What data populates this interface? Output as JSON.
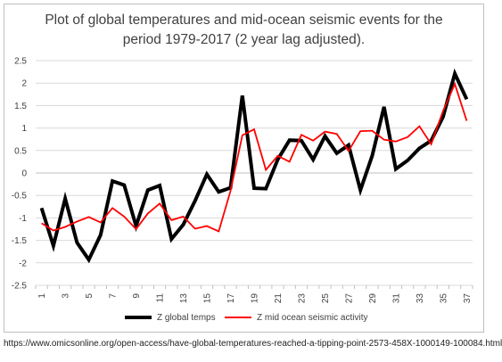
{
  "chart_data": {
    "type": "line",
    "title_lines": [
      "Plot of global temperatures and mid-ocean seismic events for the",
      "period 1979-2017 (2 year lag adjusted)."
    ],
    "xlabel": "",
    "ylabel": "",
    "ylim": [
      -2.5,
      2.5
    ],
    "ytick_step": 0.5,
    "ytick_labels": [
      "2.5",
      "2",
      "1.5",
      "1",
      "0.5",
      "0",
      "-0.5",
      "-1",
      "-1.5",
      "-2",
      "-2.5"
    ],
    "x": [
      1,
      2,
      3,
      4,
      5,
      6,
      7,
      8,
      9,
      10,
      11,
      12,
      13,
      14,
      15,
      16,
      17,
      18,
      19,
      20,
      21,
      22,
      23,
      24,
      25,
      26,
      27,
      28,
      29,
      30,
      31,
      32,
      33,
      34,
      35,
      36,
      37
    ],
    "xtick_labels": [
      "1",
      "3",
      "5",
      "7",
      "9",
      "11",
      "13",
      "15",
      "17",
      "19",
      "21",
      "23",
      "25",
      "27",
      "29",
      "31",
      "33",
      "35",
      "37"
    ],
    "grid": true,
    "legend_position": "bottom",
    "series": [
      {
        "name": "Z global temps",
        "color": "#000000",
        "values": [
          -0.78,
          -1.62,
          -0.57,
          -1.55,
          -1.93,
          -1.38,
          -0.18,
          -0.27,
          -1.18,
          -0.38,
          -0.28,
          -1.47,
          -1.15,
          -0.62,
          -0.03,
          -0.42,
          -0.33,
          1.72,
          -0.34,
          -0.35,
          0.3,
          0.73,
          0.72,
          0.3,
          0.82,
          0.44,
          0.62,
          -0.38,
          0.38,
          1.47,
          0.09,
          0.28,
          0.55,
          0.72,
          1.25,
          2.21,
          1.64
        ]
      },
      {
        "name": "Z mid ocean seismic activity",
        "color": "#ff0000",
        "values": [
          -1.12,
          -1.28,
          -1.2,
          -1.08,
          -0.98,
          -1.1,
          -0.78,
          -0.97,
          -1.25,
          -0.9,
          -0.68,
          -1.05,
          -0.97,
          -1.24,
          -1.18,
          -1.3,
          -0.4,
          0.84,
          0.97,
          0.07,
          0.38,
          0.25,
          0.85,
          0.72,
          0.92,
          0.87,
          0.49,
          0.93,
          0.94,
          0.74,
          0.7,
          0.8,
          1.04,
          0.64,
          1.38,
          1.98,
          1.16
        ]
      }
    ]
  },
  "source_url": "https://www.omicsonline.org/open-access/have-global-temperatures-reached-a-tipping-point-2573-458X-1000149-100084.html"
}
